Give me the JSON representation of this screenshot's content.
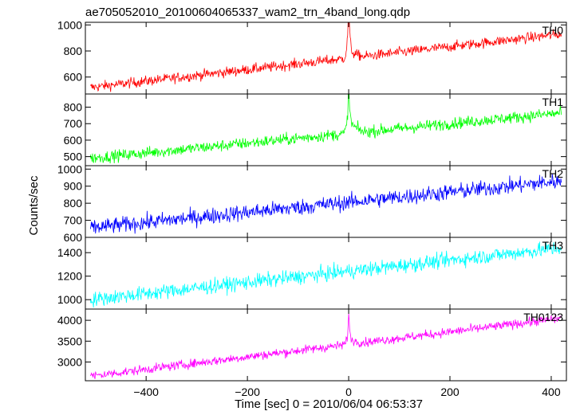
{
  "chart_data": {
    "type": "line",
    "title": "ae705052010_20100604065337_wam2_trn_4band_long.qdp",
    "xlabel": "Time [sec] 0 = 2010/06/04 06:53:37",
    "ylabel": "Counts/sec",
    "xlim": [
      -520,
      430
    ],
    "x_ticks": [
      -400,
      -200,
      0,
      200,
      400
    ],
    "x_tick_labels": [
      "−400",
      "−200",
      "0",
      "200",
      "400"
    ],
    "x_data_range": [
      -510,
      420
    ],
    "x_step": 1,
    "grid": false,
    "panels": [
      {
        "name": "TH0",
        "color": "#ff0000",
        "ylim": [
          470,
          1020
        ],
        "y_ticks": [
          600,
          800,
          1000
        ],
        "baseline_start": 520,
        "baseline_end": 930,
        "noise_sd": 20,
        "peak_x": 0,
        "peak_height": 420,
        "step_after_peak": 40
      },
      {
        "name": "TH1",
        "color": "#00ff00",
        "ylim": [
          445,
          880
        ],
        "y_ticks": [
          500,
          600,
          700,
          800
        ],
        "baseline_start": 490,
        "baseline_end": 765,
        "noise_sd": 18,
        "peak_x": 0,
        "peak_height": 260,
        "step_after_peak": 55
      },
      {
        "name": "TH2",
        "color": "#0000ff",
        "ylim": [
          600,
          1020
        ],
        "y_ticks": [
          600,
          700,
          800,
          900,
          1000
        ],
        "baseline_start": 655,
        "baseline_end": 930,
        "noise_sd": 24,
        "peak_x": 0,
        "peak_height": 0,
        "step_after_peak": 0
      },
      {
        "name": "TH3",
        "color": "#00ffff",
        "ylim": [
          920,
          1530
        ],
        "y_ticks": [
          1000,
          1200,
          1400
        ],
        "baseline_start": 1000,
        "baseline_end": 1440,
        "noise_sd": 32,
        "peak_x": 0,
        "peak_height": 0,
        "step_after_peak": 0
      },
      {
        "name": "TH0123",
        "color": "#ff00ff",
        "ylim": [
          2550,
          4270
        ],
        "y_ticks": [
          3000,
          3500,
          4000
        ],
        "baseline_start": 2660,
        "baseline_end": 4050,
        "noise_sd": 55,
        "peak_x": 0,
        "peak_height": 650,
        "step_after_peak": 90
      }
    ]
  }
}
